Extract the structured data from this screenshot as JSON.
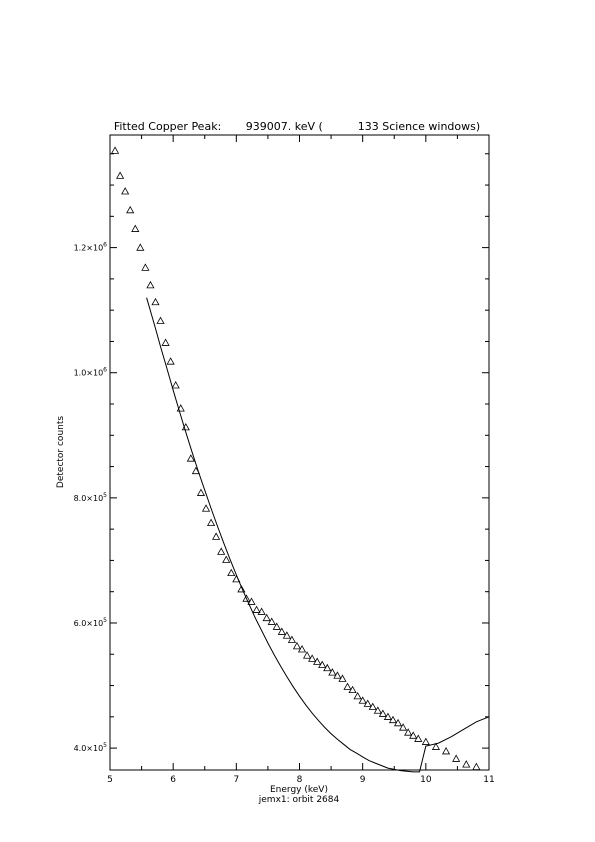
{
  "chart_data": {
    "type": "scatter",
    "title": "Fitted Copper Peak:       939007. keV (          133 Science windows)",
    "xlabel": "Energy (keV)",
    "ylabel": "Detector counts",
    "subtitle": "jemx1: orbit 2684",
    "xlim": [
      5,
      11
    ],
    "ylim": [
      365000,
      1380000
    ],
    "x_ticks": [
      5,
      6,
      7,
      8,
      9,
      10,
      11
    ],
    "x_tick_labels": [
      "5",
      "6",
      "7",
      "8",
      "9",
      "10",
      "11"
    ],
    "y_ticks": [
      400000,
      600000,
      800000,
      1000000,
      1200000
    ],
    "y_tick_labels": [
      {
        "base": "4.0×10",
        "exp": "5"
      },
      {
        "base": "6.0×10",
        "exp": "5"
      },
      {
        "base": "8.0×10",
        "exp": "5"
      },
      {
        "base": "1.0×10",
        "exp": "6"
      },
      {
        "base": "1.2×10",
        "exp": "6"
      }
    ],
    "grid": false,
    "series": [
      {
        "marker": "triangle",
        "x": [
          5.08,
          5.16,
          5.24,
          5.32,
          5.4,
          5.48,
          5.56,
          5.64,
          5.72,
          5.8,
          5.88,
          5.96,
          6.04,
          6.12,
          6.2,
          6.28,
          6.36,
          6.44,
          6.52,
          6.6,
          6.68,
          6.76,
          6.84,
          6.92,
          7.0,
          7.08,
          7.16,
          7.24,
          7.32,
          7.4,
          7.48,
          7.56,
          7.64,
          7.72,
          7.8,
          7.88,
          7.96,
          8.04,
          8.12,
          8.2,
          8.28,
          8.36,
          8.44,
          8.52,
          8.6,
          8.68,
          8.76,
          8.84,
          8.92,
          9.0,
          9.08,
          9.16,
          9.24,
          9.32,
          9.4,
          9.48,
          9.56,
          9.64,
          9.72,
          9.8,
          9.88,
          10.0,
          10.16,
          10.32,
          10.48,
          10.64,
          10.8
        ],
        "y": [
          1355000,
          1315000,
          1290000,
          1260000,
          1230000,
          1200000,
          1168000,
          1140000,
          1113000,
          1083000,
          1048000,
          1018000,
          980000,
          943000,
          913000,
          863000,
          843000,
          808000,
          783000,
          760000,
          738000,
          714000,
          701000,
          680000,
          670000,
          654000,
          639000,
          634000,
          621000,
          618000,
          608000,
          602000,
          594000,
          586000,
          580000,
          573000,
          563000,
          558000,
          548000,
          543000,
          538000,
          533000,
          528000,
          521000,
          516000,
          511000,
          498000,
          493000,
          483000,
          476000,
          471000,
          466000,
          460000,
          455000,
          450000,
          445000,
          440000,
          433000,
          425000,
          420000,
          415000,
          410000,
          402000,
          395000,
          383000,
          374000,
          370000
        ]
      },
      {
        "marker": "line",
        "x": [
          5.58,
          5.7,
          5.8,
          5.9,
          6.0,
          6.1,
          6.2,
          6.3,
          6.4,
          6.5,
          6.6,
          6.7,
          6.8,
          6.9,
          7.0,
          7.1,
          7.2,
          7.3,
          7.4,
          7.5,
          7.6,
          7.7,
          7.8,
          7.9,
          8.0,
          8.1,
          8.2,
          8.3,
          8.4,
          8.5,
          8.6,
          8.7,
          8.8,
          8.9,
          9.0,
          9.1,
          9.2,
          9.3,
          9.4,
          9.5,
          9.6,
          9.7,
          9.8,
          9.9,
          10.0,
          10.2,
          10.4,
          10.6,
          10.8,
          11.0
        ],
        "y": [
          1120000,
          1078000,
          1042000,
          1007000,
          972000,
          938000,
          905000,
          873000,
          842000,
          812000,
          783000,
          755000,
          728000,
          702000,
          677000,
          653000,
          630000,
          608000,
          588000,
          568000,
          549000,
          531000,
          514000,
          498000,
          483000,
          469000,
          456000,
          444000,
          433000,
          423000,
          414000,
          406000,
          398000,
          392000,
          386000,
          380000,
          376000,
          372000,
          368000,
          366000,
          364000,
          363000,
          362000,
          362000,
          403000,
          408000,
          418000,
          430000,
          442000,
          450000
        ]
      }
    ]
  }
}
